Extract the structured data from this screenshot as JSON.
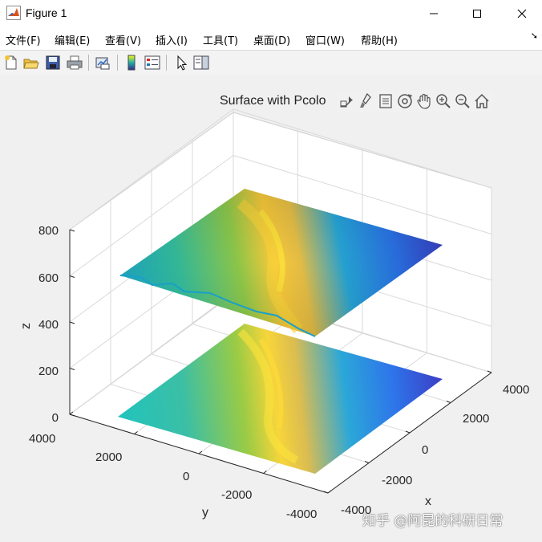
{
  "window": {
    "title": "Figure 1"
  },
  "menu": [
    "文件(F)",
    "编辑(E)",
    "查看(V)",
    "插入(I)",
    "工具(T)",
    "桌面(D)",
    "窗口(W)",
    "帮助(H)"
  ],
  "toolbar": {
    "buttons": [
      "new-figure",
      "open-file",
      "save-figure",
      "print-figure",
      "link-plot",
      "insert-colorbar",
      "insert-legend",
      "edit-plot",
      "property-inspector"
    ]
  },
  "axes_toolbar": {
    "buttons": [
      "export",
      "brush",
      "data-tips",
      "rotate-3d",
      "pan",
      "zoom-in",
      "zoom-out",
      "restore-view"
    ]
  },
  "chart_data": {
    "type": "surface",
    "title": "Surface with Pcolor",
    "title_visible_text": "Surface with Pcolo",
    "xlabel": "x",
    "ylabel": "y",
    "zlabel": "z",
    "xlim": [
      -4000,
      4000
    ],
    "ylim": [
      -4000,
      4000
    ],
    "zlim": [
      0,
      800
    ],
    "x_ticks": [
      -4000,
      -2000,
      0,
      2000,
      4000
    ],
    "y_ticks": [
      -4000,
      -2000,
      0,
      2000,
      4000
    ],
    "z_ticks": [
      0,
      200,
      400,
      600,
      800
    ],
    "x_tick_labels": [
      "-4000",
      "-2000",
      "0",
      "2000",
      "4000"
    ],
    "y_tick_labels": [
      "-4000",
      "-2000",
      "0",
      "2000",
      "4000"
    ],
    "z_tick_labels": [
      "0",
      "200",
      "400",
      "600",
      "800"
    ],
    "grid": true,
    "colormap": "parula",
    "series": [
      {
        "kind": "surface",
        "z_base": 600
      },
      {
        "kind": "pcolor",
        "z_base": 0
      }
    ]
  },
  "watermark": "知乎 @阿昆的科研日常"
}
